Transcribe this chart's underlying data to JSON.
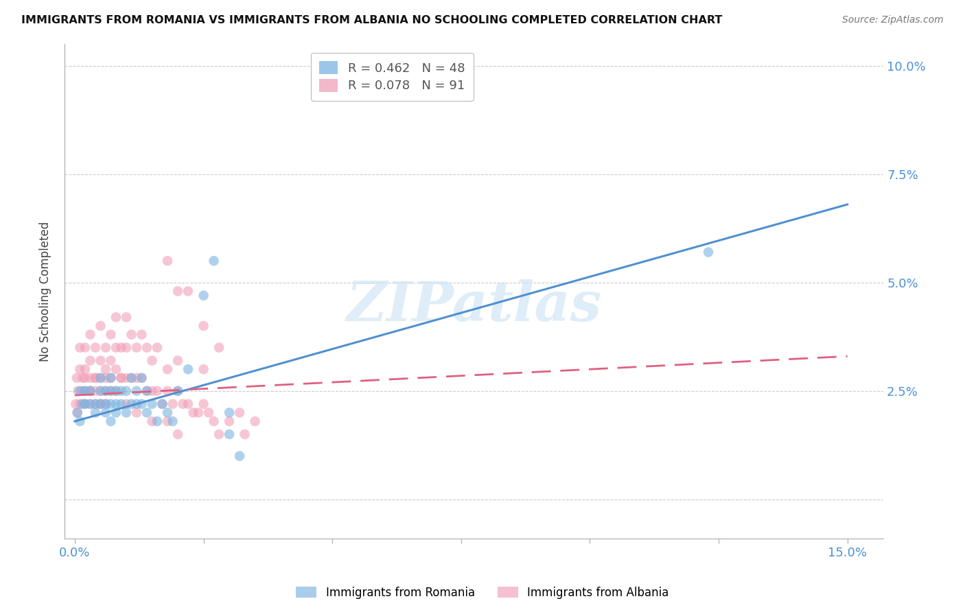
{
  "title": "IMMIGRANTS FROM ROMANIA VS IMMIGRANTS FROM ALBANIA NO SCHOOLING COMPLETED CORRELATION CHART",
  "source": "Source: ZipAtlas.com",
  "ylabel": "No Schooling Completed",
  "xlim": [
    -0.002,
    0.157
  ],
  "ylim": [
    -0.009,
    0.105
  ],
  "xticks": [
    0.0,
    0.025,
    0.05,
    0.075,
    0.1,
    0.125,
    0.15
  ],
  "xticklabels": [
    "0.0%",
    "",
    "",
    "",
    "",
    "",
    "15.0%"
  ],
  "yticks": [
    0.0,
    0.025,
    0.05,
    0.075,
    0.1
  ],
  "yticklabels": [
    "",
    "2.5%",
    "5.0%",
    "7.5%",
    "10.0%"
  ],
  "romania_R": 0.462,
  "romania_N": 48,
  "albania_R": 0.078,
  "albania_N": 91,
  "romania_color": "#7ab3e0",
  "albania_color": "#f0a0b8",
  "romania_line_color": "#5090d0",
  "albania_line_color": "#e06080",
  "watermark": "ZIPatlas",
  "romania_scatter_x": [
    0.0005,
    0.001,
    0.0015,
    0.001,
    0.002,
    0.002,
    0.003,
    0.003,
    0.004,
    0.004,
    0.005,
    0.005,
    0.005,
    0.006,
    0.006,
    0.006,
    0.007,
    0.007,
    0.007,
    0.007,
    0.008,
    0.008,
    0.008,
    0.009,
    0.009,
    0.01,
    0.01,
    0.011,
    0.011,
    0.012,
    0.012,
    0.013,
    0.013,
    0.014,
    0.014,
    0.015,
    0.016,
    0.017,
    0.018,
    0.019,
    0.02,
    0.022,
    0.025,
    0.027,
    0.03,
    0.03,
    0.032,
    0.123
  ],
  "romania_scatter_y": [
    0.02,
    0.018,
    0.022,
    0.025,
    0.022,
    0.025,
    0.022,
    0.025,
    0.02,
    0.022,
    0.022,
    0.025,
    0.028,
    0.02,
    0.022,
    0.025,
    0.018,
    0.022,
    0.025,
    0.028,
    0.02,
    0.022,
    0.025,
    0.022,
    0.025,
    0.02,
    0.025,
    0.022,
    0.028,
    0.022,
    0.025,
    0.022,
    0.028,
    0.02,
    0.025,
    0.022,
    0.018,
    0.022,
    0.02,
    0.018,
    0.025,
    0.03,
    0.047,
    0.055,
    0.02,
    0.015,
    0.01,
    0.057
  ],
  "albania_scatter_x": [
    0.0002,
    0.0004,
    0.0006,
    0.001,
    0.001,
    0.0015,
    0.002,
    0.002,
    0.002,
    0.003,
    0.003,
    0.003,
    0.003,
    0.004,
    0.004,
    0.004,
    0.005,
    0.005,
    0.005,
    0.005,
    0.006,
    0.006,
    0.006,
    0.007,
    0.007,
    0.007,
    0.008,
    0.008,
    0.008,
    0.009,
    0.009,
    0.01,
    0.01,
    0.01,
    0.011,
    0.011,
    0.012,
    0.012,
    0.013,
    0.013,
    0.014,
    0.014,
    0.015,
    0.015,
    0.016,
    0.016,
    0.017,
    0.018,
    0.018,
    0.019,
    0.02,
    0.02,
    0.021,
    0.022,
    0.023,
    0.024,
    0.025,
    0.026,
    0.027,
    0.028,
    0.03,
    0.032,
    0.033,
    0.035,
    0.018,
    0.02,
    0.022,
    0.025,
    0.028,
    0.025,
    0.0005,
    0.001,
    0.0015,
    0.002,
    0.002,
    0.003,
    0.003,
    0.004,
    0.004,
    0.005,
    0.005,
    0.006,
    0.006,
    0.007,
    0.008,
    0.009,
    0.01,
    0.012,
    0.015,
    0.018,
    0.02
  ],
  "albania_scatter_y": [
    0.022,
    0.028,
    0.025,
    0.03,
    0.035,
    0.028,
    0.025,
    0.03,
    0.035,
    0.025,
    0.028,
    0.032,
    0.038,
    0.025,
    0.028,
    0.035,
    0.022,
    0.028,
    0.032,
    0.04,
    0.025,
    0.03,
    0.035,
    0.028,
    0.032,
    0.038,
    0.03,
    0.035,
    0.042,
    0.028,
    0.035,
    0.028,
    0.035,
    0.042,
    0.028,
    0.038,
    0.028,
    0.035,
    0.028,
    0.038,
    0.025,
    0.035,
    0.025,
    0.032,
    0.025,
    0.035,
    0.022,
    0.025,
    0.03,
    0.022,
    0.025,
    0.032,
    0.022,
    0.022,
    0.02,
    0.02,
    0.022,
    0.02,
    0.018,
    0.015,
    0.018,
    0.02,
    0.015,
    0.018,
    0.055,
    0.048,
    0.048,
    0.04,
    0.035,
    0.03,
    0.02,
    0.022,
    0.025,
    0.022,
    0.028,
    0.022,
    0.025,
    0.022,
    0.028,
    0.022,
    0.025,
    0.022,
    0.028,
    0.025,
    0.025,
    0.028,
    0.022,
    0.02,
    0.018,
    0.018,
    0.015
  ]
}
